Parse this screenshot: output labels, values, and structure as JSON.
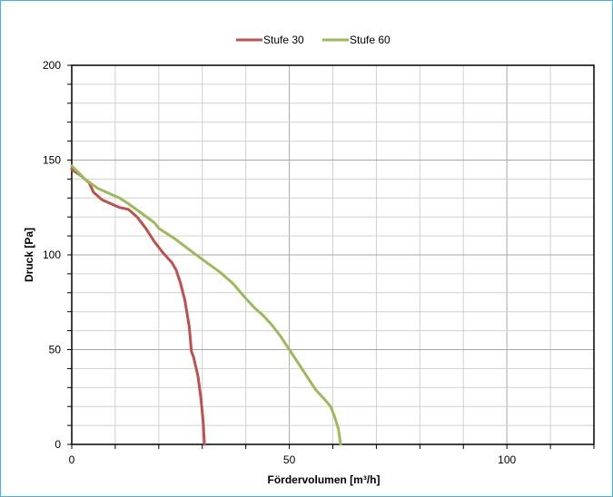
{
  "chart_data": {
    "type": "line",
    "title": "",
    "xlabel": "Fördervolumen [m³/h]",
    "ylabel": "Druck [Pa]",
    "xlim": [
      0,
      120
    ],
    "ylim": [
      0,
      200
    ],
    "x_major_ticks": [
      0,
      50,
      100
    ],
    "y_major_ticks": [
      0,
      50,
      100,
      150,
      200
    ],
    "x_minor_step": 10,
    "y_minor_step": 10,
    "grid": true,
    "legend_position": "top-center",
    "series": [
      {
        "name": "Stufe 30",
        "color": "#c0504d",
        "points": [
          [
            0,
            145
          ],
          [
            2,
            142
          ],
          [
            4,
            138
          ],
          [
            5,
            133
          ],
          [
            7,
            129
          ],
          [
            9,
            127
          ],
          [
            11,
            125
          ],
          [
            13,
            124
          ],
          [
            15,
            120
          ],
          [
            17,
            114
          ],
          [
            19,
            107
          ],
          [
            21,
            101
          ],
          [
            23,
            96
          ],
          [
            24,
            92
          ],
          [
            25,
            85
          ],
          [
            26,
            76
          ],
          [
            27,
            62
          ],
          [
            27.5,
            49
          ],
          [
            28,
            46
          ],
          [
            29,
            36
          ],
          [
            29.7,
            24
          ],
          [
            30.2,
            12
          ],
          [
            30.5,
            0
          ]
        ]
      },
      {
        "name": "Stufe 60",
        "color": "#9bbb59",
        "points": [
          [
            0,
            147
          ],
          [
            3,
            140
          ],
          [
            6,
            135
          ],
          [
            9,
            132
          ],
          [
            11,
            130
          ],
          [
            13,
            127
          ],
          [
            16,
            122
          ],
          [
            19,
            117
          ],
          [
            20,
            114
          ],
          [
            24,
            108
          ],
          [
            28,
            101
          ],
          [
            31,
            96
          ],
          [
            34,
            91
          ],
          [
            37,
            85
          ],
          [
            40,
            77
          ],
          [
            42,
            72
          ],
          [
            44,
            68
          ],
          [
            46,
            63
          ],
          [
            48,
            57
          ],
          [
            50,
            50
          ],
          [
            52,
            43
          ],
          [
            54,
            36
          ],
          [
            56,
            29
          ],
          [
            58,
            24
          ],
          [
            59.5,
            20
          ],
          [
            60.5,
            14
          ],
          [
            61.3,
            8
          ],
          [
            61.8,
            0
          ]
        ]
      }
    ]
  }
}
